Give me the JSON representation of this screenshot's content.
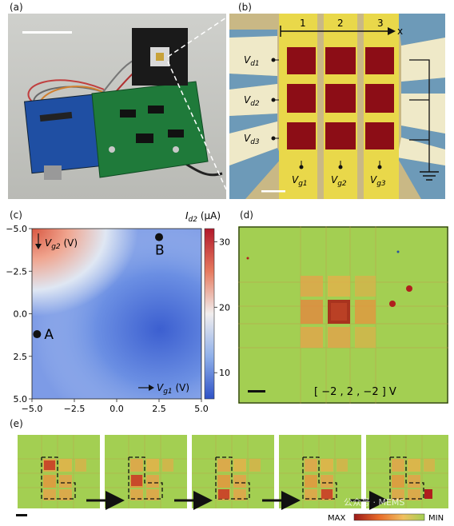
{
  "panels": {
    "a": {
      "label": "(a)"
    },
    "b": {
      "label": "(b)",
      "col_labels": [
        "1",
        "2",
        "3"
      ],
      "axis_label": "x",
      "drain_labels": [
        "V",
        "V",
        "V"
      ],
      "drain_subs": [
        "d1",
        "d2",
        "d3"
      ],
      "gate_labels": [
        "V",
        "V",
        "V"
      ],
      "gate_subs": [
        "g1",
        "g2",
        "g3"
      ]
    },
    "c": {
      "label": "(c)",
      "colorbar_label": "I",
      "colorbar_sub": "d2",
      "colorbar_unit": " (μA)",
      "colorbar_ticks": [
        "30",
        "20",
        "10"
      ],
      "ytick_labels": [
        "−5.0",
        "−2.5",
        "0.0",
        "2.5",
        "5.0"
      ],
      "xtick_labels": [
        "−5.0",
        "−2.5",
        "0.0",
        "2.5",
        "5.0"
      ],
      "ylabel_text": "V",
      "ylabel_sub": "g2",
      "ylabel_unit": " (V)",
      "xlabel_text": "V",
      "xlabel_sub": "g1",
      "xlabel_unit": " (V)",
      "point_a": "A",
      "point_b": "B"
    },
    "d": {
      "label": "(d)",
      "caption": "[ −2 , 2 , −2 ] V"
    },
    "e": {
      "label": "(e)",
      "legend_max": "MAX",
      "legend_min": "MIN",
      "watermark": "公众号 · MEMS"
    }
  },
  "chart_data": {
    "type": "heatmap",
    "x": [
      -5.0,
      -2.5,
      0.0,
      2.5,
      5.0
    ],
    "y": [
      -5.0,
      -2.5,
      0.0,
      2.5,
      5.0
    ],
    "xlabel": "Vg1 (V)",
    "ylabel": "Vg2 (V)",
    "colorbar_label": "Id2 (μA)",
    "colorbar_range": [
      6,
      32
    ],
    "xlim": [
      -5,
      5
    ],
    "ylim": [
      -5,
      5
    ],
    "points": [
      {
        "name": "A",
        "x": -4.7,
        "y": 1.2
      },
      {
        "name": "B",
        "x": 2.5,
        "y": -4.5
      }
    ]
  }
}
